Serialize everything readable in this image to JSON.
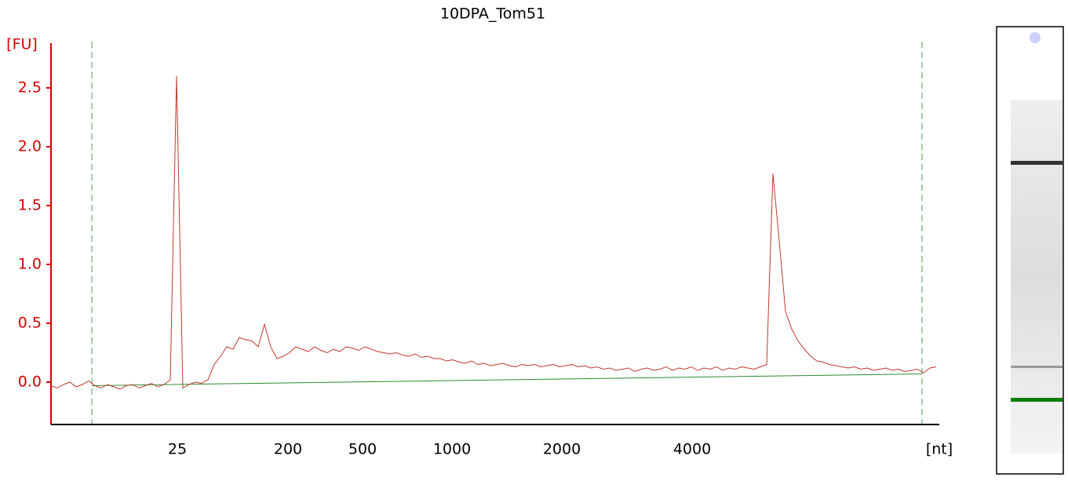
{
  "chart_data": {
    "type": "line",
    "title": "10DPA_Tom51",
    "y_label": "[FU]",
    "x_label": "[nt]",
    "color": "#c0392b",
    "axis_color": "#d40000",
    "ylim": [
      -0.36,
      2.88
    ],
    "yticks": [
      {
        "value": 0,
        "label": "0.0"
      },
      0.5,
      {
        "value": 1,
        "label": "1.0"
      },
      1.5,
      {
        "value": 2,
        "label": "2.0"
      },
      2.5
    ],
    "xticks": [
      25,
      200,
      500,
      1000,
      2000,
      4000
    ],
    "baseline": {
      "color": "#2e8b2e",
      "values": [
        -0.03,
        0.07
      ]
    },
    "values": [
      -0.03,
      -0.05,
      -0.02,
      0.0,
      -0.04,
      -0.02,
      0.01,
      -0.03,
      -0.05,
      -0.02,
      -0.04,
      -0.06,
      -0.03,
      -0.02,
      -0.05,
      -0.03,
      -0.01,
      -0.04,
      -0.02,
      0.02,
      2.6,
      -0.05,
      -0.02,
      0.0,
      -0.01,
      0.02,
      0.15,
      0.22,
      0.3,
      0.28,
      0.38,
      0.36,
      0.35,
      0.3,
      0.49,
      0.3,
      0.2,
      0.22,
      0.25,
      0.3,
      0.28,
      0.26,
      0.3,
      0.27,
      0.25,
      0.28,
      0.26,
      0.3,
      0.29,
      0.27,
      0.3,
      0.28,
      0.26,
      0.25,
      0.24,
      0.25,
      0.23,
      0.22,
      0.24,
      0.21,
      0.22,
      0.2,
      0.2,
      0.18,
      0.19,
      0.17,
      0.16,
      0.18,
      0.15,
      0.16,
      0.14,
      0.15,
      0.16,
      0.14,
      0.13,
      0.15,
      0.14,
      0.15,
      0.13,
      0.14,
      0.15,
      0.13,
      0.14,
      0.15,
      0.13,
      0.14,
      0.12,
      0.13,
      0.11,
      0.12,
      0.1,
      0.11,
      0.12,
      0.09,
      0.11,
      0.12,
      0.1,
      0.11,
      0.13,
      0.1,
      0.12,
      0.11,
      0.13,
      0.1,
      0.12,
      0.11,
      0.13,
      0.1,
      0.12,
      0.11,
      0.13,
      0.12,
      0.11,
      0.13,
      0.15,
      1.77,
      1.2,
      0.6,
      0.45,
      0.35,
      0.28,
      0.22,
      0.18,
      0.17,
      0.15,
      0.14,
      0.13,
      0.12,
      0.13,
      0.11,
      0.12,
      0.1,
      0.11,
      0.12,
      0.1,
      0.11,
      0.09,
      0.1,
      0.11,
      0.08,
      0.12,
      0.13
    ]
  }
}
